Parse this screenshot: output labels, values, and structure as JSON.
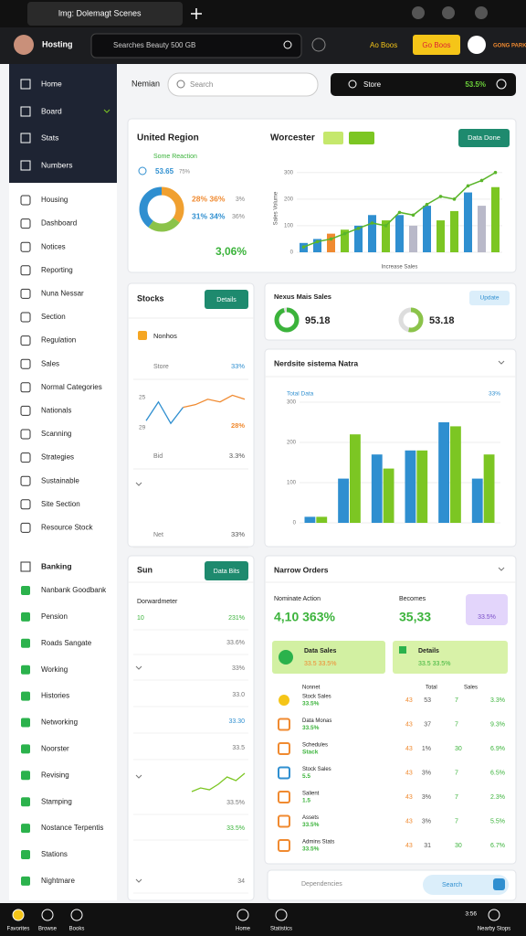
{
  "browser": {
    "tab": "lmg: Dolemagt Scenes"
  },
  "header": {
    "user": "Hosting",
    "search": "Searches Beauty 500 GB",
    "promo": "Ao Boos",
    "button": "Go Boos",
    "brand": "GONG PARK"
  },
  "sidebar": {
    "top": [
      "Home",
      "Board",
      "Stats",
      "Numbers"
    ],
    "items": [
      "Housing",
      "Dashboard",
      "Notices",
      "Reporting",
      "Nuna Nessar",
      "Section",
      "Regulation",
      "Sales",
      "Normal Categories",
      "Nationals",
      "Scanning",
      "Strategies",
      "Sustainable",
      "Site Section",
      "Resource Stock"
    ],
    "section": "Banking",
    "items2": [
      "Nanbank Goodbank",
      "Pension",
      "Roads Sangate",
      "Working",
      "Histories",
      "Networking",
      "Noorster",
      "Revising",
      "Stamping",
      "Nostance Terpentis",
      "Stations",
      "Nightmare"
    ]
  },
  "toolbar": {
    "label": "Nemian",
    "search": "Search",
    "store": "Store",
    "store_value": "53.5%"
  },
  "region": {
    "title": "United Region",
    "subtitle": "Some Reaction",
    "stat": "53.65",
    "stat_note": "75%",
    "legend": [
      {
        "value": "28% 36%",
        "note": "3%",
        "color": "#f08a30"
      },
      {
        "value": "31% 34%",
        "note": "36%",
        "color": "#2f8fd0"
      }
    ],
    "total": "3,06%",
    "donut": [
      {
        "value": 35,
        "color": "#f0a030"
      },
      {
        "value": 25,
        "color": "#8bc34a"
      },
      {
        "value": 40,
        "color": "#2f8fd0"
      }
    ]
  },
  "combo": {
    "title": "Worcester",
    "button": "Data Done",
    "x_label": "Increase Sales",
    "y_label": "Sales Volume",
    "ylim": [
      0,
      330
    ],
    "yticks": [
      0,
      100,
      200,
      300
    ],
    "bars": [
      35,
      50,
      70,
      85,
      100,
      140,
      120,
      140,
      100,
      175,
      120,
      155,
      225,
      175,
      245
    ],
    "colors": [
      "#2f8fd0",
      "#2f8fd0",
      "#f08a30",
      "#7cc623",
      "#2f8fd0",
      "#2f8fd0",
      "#7cc623",
      "#2f8fd0",
      "#b9b9c9",
      "#2f8fd0",
      "#7cc623",
      "#7cc623",
      "#2f8fd0",
      "#b9b9c9",
      "#7cc623"
    ],
    "line": [
      20,
      40,
      50,
      70,
      90,
      110,
      100,
      150,
      140,
      180,
      210,
      200,
      250,
      270,
      300
    ],
    "line_color": "#5ab52a"
  },
  "stocks": {
    "title": "Stocks",
    "button": "Details",
    "head": "Nonhos",
    "rows": [
      {
        "label": "Store",
        "value": "33%",
        "color": "#2f8fd0"
      },
      {
        "label": "Bid",
        "value": "3.3%",
        "color": "#555555"
      },
      {
        "label": "Net",
        "value": "33%",
        "color": "#555555"
      }
    ],
    "chart_labels": [
      "25",
      "29"
    ],
    "chart_value": "28%",
    "ylim": [
      0,
      30
    ],
    "series": [
      {
        "color": "#2f8fd0",
        "values": [
          8,
          22,
          6,
          18,
          null,
          null,
          null,
          null,
          null
        ]
      },
      {
        "color": "#f08a30",
        "values": [
          null,
          null,
          null,
          18,
          20,
          24,
          22,
          27,
          24
        ]
      }
    ]
  },
  "gauges": {
    "title": "Nexus Mais Sales",
    "button": "Update",
    "items": [
      {
        "value": 95.18,
        "color": "#3bb33b"
      },
      {
        "value": 53.18,
        "color": "#8bc34a"
      }
    ]
  },
  "barcard": {
    "title": "Nerdsite sistema Natra",
    "subtitle": "Total Data",
    "badge": "33%",
    "ylim": [
      0,
      300
    ],
    "yticks": [
      0,
      100,
      200,
      300
    ],
    "series": [
      {
        "color": "#2f8fd0",
        "values": [
          15,
          110,
          170,
          180,
          250,
          110
        ]
      },
      {
        "color": "#7cc623",
        "values": [
          15,
          220,
          135,
          180,
          240,
          170
        ]
      }
    ]
  },
  "sun": {
    "title": "Sun",
    "button": "Data Bits",
    "head": "Dorwardmeter",
    "marker": "10",
    "rows": [
      {
        "value": "231%",
        "color": "#3bb33b"
      },
      {
        "value": "33.6%",
        "color": "#777777"
      },
      {
        "value": "33%",
        "color": "#777777"
      },
      {
        "value": "33.0",
        "color": "#777777"
      },
      {
        "value": "33.30",
        "color": "#2f8fd0"
      },
      {
        "value": "33.5",
        "color": "#777777"
      },
      {
        "value": "33.5%",
        "color": "#777777"
      },
      {
        "value": "33.5%",
        "color": "#3bb33b"
      },
      {
        "value": "34",
        "color": "#777777"
      }
    ],
    "line": [
      0,
      2,
      1,
      4,
      8,
      6,
      10
    ],
    "line_color": "#7cc623"
  },
  "orders": {
    "title": "Narrow Orders",
    "kpi1_label": "Nominate Action",
    "kpi1": "4,10 363%",
    "kpi2_label": "Becomes",
    "kpi2": "35,33",
    "badge": "33.5%",
    "banner1": {
      "title": "Data Sales",
      "value": "33.5 33.5%"
    },
    "banner2": {
      "title": "Details",
      "value": "33.5 33.5%"
    },
    "columns": [
      "Nonnet",
      "Total",
      "Sales"
    ],
    "rows": [
      {
        "name": "Stock Sales",
        "sub": "33.5%",
        "a": "43",
        "b": "53",
        "c": "7",
        "d": "3.3%",
        "color": "#f5c518"
      },
      {
        "name": "Data Monas",
        "sub": "33.5%",
        "a": "43",
        "b": "37",
        "c": "7",
        "d": "9.3%",
        "color": "#f08a30"
      },
      {
        "name": "Schedules",
        "sub": "Stack",
        "a": "43",
        "b": "1%",
        "c": "30",
        "d": "6.9%",
        "color": "#f08a30"
      },
      {
        "name": "Stock Sales",
        "sub": "5.5",
        "a": "43",
        "b": "3%",
        "c": "7",
        "d": "6.5%",
        "color": "#2f8fd0"
      },
      {
        "name": "Salient",
        "sub": "1.5",
        "a": "43",
        "b": "3%",
        "c": "7",
        "d": "2.3%",
        "color": "#f08a30"
      },
      {
        "name": "Assets",
        "sub": "33.5%",
        "a": "43",
        "b": "3%",
        "c": "7",
        "d": "5.5%",
        "color": "#f08a30"
      },
      {
        "name": "Admins Stats",
        "sub": "33.5%",
        "a": "43",
        "b": "31",
        "c": "30",
        "d": "6.7%",
        "color": "#f08a30"
      }
    ]
  },
  "footer_search": {
    "label": "Dependencies",
    "search": "Search"
  },
  "bottom": {
    "items": [
      "Favorites",
      "Browse",
      "Books",
      "Home",
      "Statistics",
      "Nearby Stops"
    ],
    "time": "3:56"
  }
}
